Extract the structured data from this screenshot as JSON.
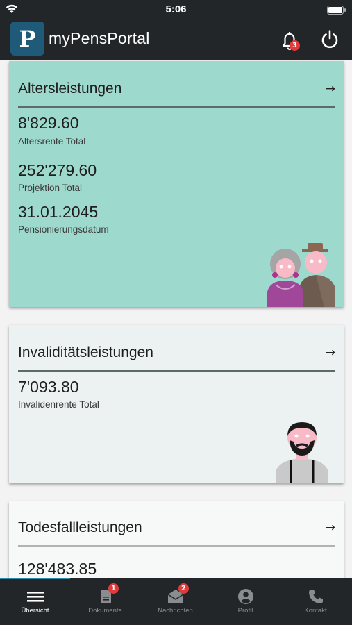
{
  "status_bar": {
    "time": "5:06"
  },
  "header": {
    "logo_letter": "P",
    "title": "myPensPortal",
    "notifications_badge": "3"
  },
  "cards": {
    "alter": {
      "title": "Altersleistungen",
      "items": [
        {
          "value": "8'829.60",
          "label": "Altersrente Total"
        },
        {
          "value": "252'279.60",
          "label": "Projektion Total"
        },
        {
          "value": "31.01.2045",
          "label": "Pensionierungsdatum"
        }
      ],
      "color": "#9ed9cd"
    },
    "invaliditaet": {
      "title": "Invaliditätsleistungen",
      "items": [
        {
          "value": "7'093.80",
          "label": "Invalidenrente Total"
        }
      ],
      "color": "#ecf2f1"
    },
    "todesfall": {
      "title": "Todesfallleistungen",
      "items": [
        {
          "value": "128'483.85"
        }
      ],
      "color": "#f7f8f8"
    }
  },
  "bottom_nav": [
    {
      "label": "Übersicht",
      "icon": "menu-icon",
      "active": true
    },
    {
      "label": "Dokumente",
      "icon": "document-icon",
      "badge": "1"
    },
    {
      "label": "Nachrichten",
      "icon": "mail-icon",
      "badge": "2"
    },
    {
      "label": "Profil",
      "icon": "profile-icon"
    },
    {
      "label": "Kontakt",
      "icon": "phone-icon"
    }
  ]
}
